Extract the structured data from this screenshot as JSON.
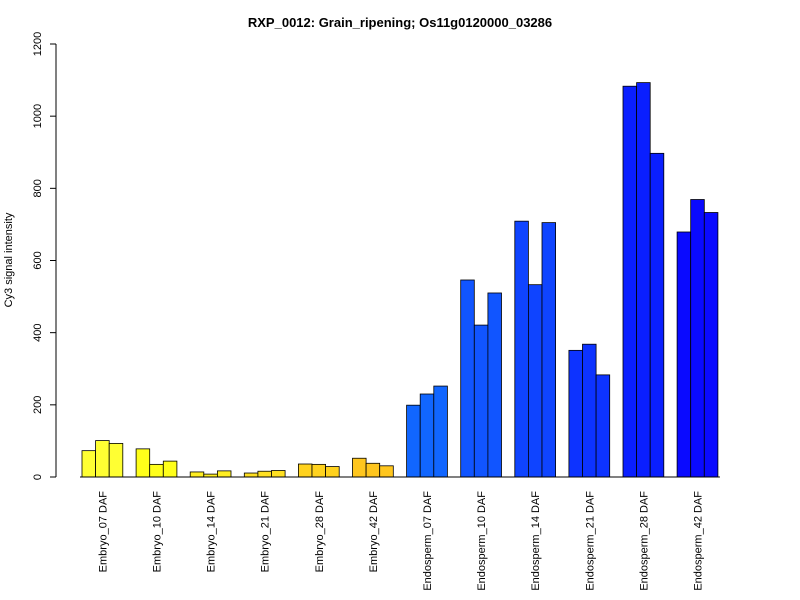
{
  "chart_data": {
    "type": "bar",
    "title": "RXP_0012: Grain_ripening; Os11g0120000_03286",
    "ylabel": "Cy3 signal intensity",
    "xlabel": "",
    "ylim": [
      0,
      1200
    ],
    "yticks": [
      0,
      200,
      400,
      600,
      800,
      1000,
      1200
    ],
    "grid": false,
    "categories": [
      "Embryo_07 DAF",
      "Embryo_10 DAF",
      "Embryo_14 DAF",
      "Embryo_21 DAF",
      "Embryo_28 DAF",
      "Embryo_42 DAF",
      "Endosperm_07 DAF",
      "Endosperm_10 DAF",
      "Endosperm_14 DAF",
      "Endosperm_21 DAF",
      "Endosperm_28 DAF",
      "Endosperm_42 DAF"
    ],
    "values": [
      [
        73,
        101,
        93
      ],
      [
        78,
        35,
        44
      ],
      [
        14,
        8,
        17
      ],
      [
        11,
        16,
        18
      ],
      [
        36,
        35,
        29
      ],
      [
        52,
        38,
        31
      ],
      [
        199,
        230,
        252
      ],
      [
        546,
        421,
        510
      ],
      [
        709,
        533,
        705
      ],
      [
        351,
        368,
        283
      ],
      [
        1083,
        1093,
        897
      ],
      [
        679,
        769,
        733
      ]
    ],
    "colors": [
      "#ffff33",
      "#ffff1a",
      "#ffee22",
      "#ffe022",
      "#ffd21e",
      "#ffc61e",
      "#1166ff",
      "#1155ff",
      "#0f44ff",
      "#0d33ff",
      "#0a1fff",
      "#0a0aff"
    ]
  }
}
